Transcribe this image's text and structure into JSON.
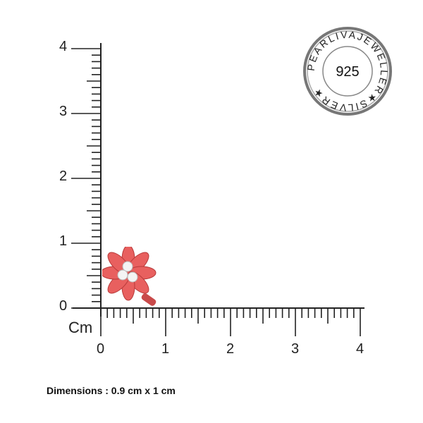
{
  "ruler": {
    "unit_label": "Cm",
    "y_ticks": [
      "0",
      "1",
      "2",
      "3",
      "4"
    ],
    "x_ticks": [
      "0",
      "1",
      "2",
      "3",
      "4"
    ],
    "range_cm": [
      0,
      4
    ],
    "minor_step_cm": 0.1
  },
  "dimensions_text": "Dimensions : 0.9 cm x 1 cm",
  "seal": {
    "center_text": "925",
    "ring_text": "PEARLIVAJEWELLER★SILVER★"
  },
  "product": {
    "name": "flower-stud",
    "color": "#e8605f",
    "stone_color": "#f4f4f4"
  }
}
